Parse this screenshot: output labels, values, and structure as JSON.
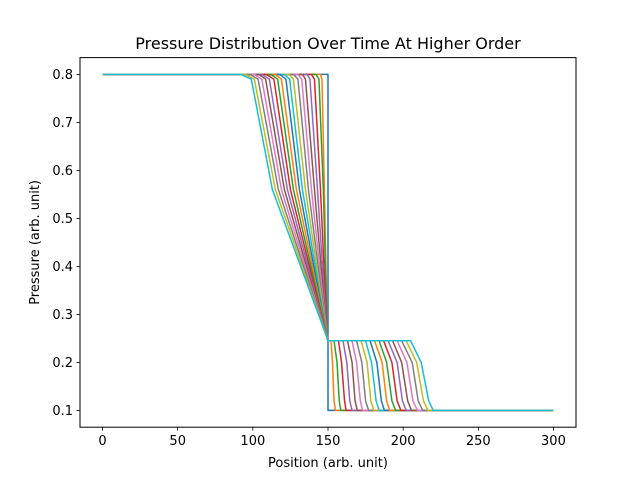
{
  "chart_data": {
    "type": "line",
    "title": "Pressure Distribution Over Time At Higher Order",
    "xlabel": "Position (arb. unit)",
    "ylabel": "Pressure (arb. unit)",
    "xlim": [
      -15,
      315
    ],
    "ylim": [
      0.065,
      0.835
    ],
    "xticks": [
      0,
      50,
      100,
      150,
      200,
      250,
      300
    ],
    "xtick_labels": [
      "0",
      "50",
      "100",
      "150",
      "200",
      "250",
      "300"
    ],
    "yticks": [
      0.1,
      0.2,
      0.3,
      0.4,
      0.5,
      0.6,
      0.7,
      0.8
    ],
    "ytick_labels": [
      "0.1",
      "0.2",
      "0.3",
      "0.4",
      "0.5",
      "0.6",
      "0.7",
      "0.8"
    ],
    "grid": false,
    "legend": "none",
    "colors": [
      "#1f77b4",
      "#ff7f0e",
      "#2ca02c",
      "#d62728",
      "#9467bd",
      "#8c564b",
      "#e377c2",
      "#7f7f7f",
      "#bcbd22",
      "#17becf"
    ],
    "series": [
      {
        "points": [
          [
            0,
            0.8
          ],
          [
            150,
            0.8
          ],
          [
            150,
            0.1
          ],
          [
            300,
            0.1
          ]
        ]
      },
      {
        "points": [
          [
            0,
            0.8
          ],
          [
            145,
            0.8
          ],
          [
            146,
            0.79
          ],
          [
            148,
            0.5
          ],
          [
            149.5,
            0.26
          ],
          [
            150,
            0.245
          ],
          [
            152,
            0.245
          ],
          [
            153,
            0.2
          ],
          [
            154,
            0.12
          ],
          [
            155,
            0.1
          ],
          [
            300,
            0.1
          ]
        ]
      },
      {
        "points": [
          [
            0,
            0.8
          ],
          [
            142,
            0.8
          ],
          [
            144,
            0.79
          ],
          [
            147,
            0.55
          ],
          [
            149.5,
            0.25
          ],
          [
            150,
            0.245
          ],
          [
            154,
            0.245
          ],
          [
            156,
            0.2
          ],
          [
            157.5,
            0.12
          ],
          [
            158.5,
            0.1
          ],
          [
            300,
            0.1
          ]
        ]
      },
      {
        "points": [
          [
            0,
            0.8
          ],
          [
            139,
            0.8
          ],
          [
            141,
            0.79
          ],
          [
            145,
            0.56
          ],
          [
            149.5,
            0.25
          ],
          [
            150,
            0.245
          ],
          [
            157,
            0.245
          ],
          [
            159,
            0.2
          ],
          [
            161,
            0.12
          ],
          [
            162,
            0.1
          ],
          [
            300,
            0.1
          ]
        ]
      },
      {
        "points": [
          [
            0,
            0.8
          ],
          [
            136,
            0.8
          ],
          [
            138,
            0.79
          ],
          [
            143,
            0.56
          ],
          [
            149.5,
            0.25
          ],
          [
            150,
            0.245
          ],
          [
            160,
            0.245
          ],
          [
            162.5,
            0.2
          ],
          [
            164.5,
            0.12
          ],
          [
            166,
            0.1
          ],
          [
            300,
            0.1
          ]
        ]
      },
      {
        "points": [
          [
            0,
            0.8
          ],
          [
            133,
            0.8
          ],
          [
            135,
            0.79
          ],
          [
            141,
            0.56
          ],
          [
            149.5,
            0.25
          ],
          [
            150,
            0.245
          ],
          [
            163,
            0.245
          ],
          [
            166,
            0.2
          ],
          [
            168,
            0.12
          ],
          [
            169.5,
            0.1
          ],
          [
            300,
            0.1
          ]
        ]
      },
      {
        "points": [
          [
            0,
            0.8
          ],
          [
            130,
            0.8
          ],
          [
            132.5,
            0.79
          ],
          [
            139,
            0.56
          ],
          [
            149.5,
            0.25
          ],
          [
            150,
            0.245
          ],
          [
            166,
            0.245
          ],
          [
            169,
            0.2
          ],
          [
            171.5,
            0.12
          ],
          [
            173,
            0.1
          ],
          [
            300,
            0.1
          ]
        ]
      },
      {
        "points": [
          [
            0,
            0.8
          ],
          [
            127,
            0.8
          ],
          [
            130,
            0.79
          ],
          [
            137,
            0.56
          ],
          [
            149.5,
            0.25
          ],
          [
            150,
            0.245
          ],
          [
            169,
            0.245
          ],
          [
            172.5,
            0.2
          ],
          [
            175,
            0.12
          ],
          [
            177,
            0.1
          ],
          [
            300,
            0.1
          ]
        ]
      },
      {
        "points": [
          [
            0,
            0.8
          ],
          [
            124,
            0.8
          ],
          [
            127,
            0.79
          ],
          [
            135,
            0.56
          ],
          [
            149.5,
            0.25
          ],
          [
            150,
            0.245
          ],
          [
            172,
            0.245
          ],
          [
            176,
            0.2
          ],
          [
            178.5,
            0.12
          ],
          [
            180.5,
            0.1
          ],
          [
            300,
            0.1
          ]
        ]
      },
      {
        "points": [
          [
            0,
            0.8
          ],
          [
            121,
            0.8
          ],
          [
            124.5,
            0.79
          ],
          [
            133,
            0.56
          ],
          [
            149.5,
            0.25
          ],
          [
            150,
            0.245
          ],
          [
            175,
            0.245
          ],
          [
            179,
            0.2
          ],
          [
            182,
            0.12
          ],
          [
            184,
            0.1
          ],
          [
            300,
            0.1
          ]
        ]
      },
      {
        "points": [
          [
            0,
            0.8
          ],
          [
            118,
            0.8
          ],
          [
            122,
            0.79
          ],
          [
            131,
            0.56
          ],
          [
            149.5,
            0.25
          ],
          [
            150,
            0.245
          ],
          [
            178,
            0.245
          ],
          [
            182.5,
            0.2
          ],
          [
            185.5,
            0.12
          ],
          [
            187.5,
            0.1
          ],
          [
            300,
            0.1
          ]
        ]
      },
      {
        "points": [
          [
            0,
            0.8
          ],
          [
            115,
            0.8
          ],
          [
            119,
            0.79
          ],
          [
            129,
            0.56
          ],
          [
            149.5,
            0.25
          ],
          [
            150,
            0.245
          ],
          [
            181,
            0.245
          ],
          [
            186,
            0.2
          ],
          [
            189,
            0.12
          ],
          [
            191,
            0.1
          ],
          [
            300,
            0.1
          ]
        ]
      },
      {
        "points": [
          [
            0,
            0.8
          ],
          [
            112,
            0.8
          ],
          [
            116.5,
            0.79
          ],
          [
            127,
            0.56
          ],
          [
            149.5,
            0.25
          ],
          [
            150,
            0.245
          ],
          [
            184,
            0.245
          ],
          [
            189,
            0.2
          ],
          [
            192.5,
            0.12
          ],
          [
            195,
            0.1
          ],
          [
            300,
            0.1
          ]
        ]
      },
      {
        "points": [
          [
            0,
            0.8
          ],
          [
            109,
            0.8
          ],
          [
            114,
            0.79
          ],
          [
            125,
            0.56
          ],
          [
            149.5,
            0.25
          ],
          [
            150,
            0.245
          ],
          [
            187,
            0.245
          ],
          [
            192.5,
            0.2
          ],
          [
            196,
            0.12
          ],
          [
            198.5,
            0.1
          ],
          [
            300,
            0.1
          ]
        ]
      },
      {
        "points": [
          [
            0,
            0.8
          ],
          [
            106,
            0.8
          ],
          [
            111,
            0.79
          ],
          [
            123,
            0.56
          ],
          [
            149.5,
            0.25
          ],
          [
            150,
            0.245
          ],
          [
            190,
            0.245
          ],
          [
            196,
            0.2
          ],
          [
            199.5,
            0.12
          ],
          [
            202,
            0.1
          ],
          [
            300,
            0.1
          ]
        ]
      },
      {
        "points": [
          [
            0,
            0.8
          ],
          [
            104,
            0.8
          ],
          [
            108.5,
            0.79
          ],
          [
            121,
            0.56
          ],
          [
            149.5,
            0.25
          ],
          [
            150,
            0.245
          ],
          [
            193,
            0.245
          ],
          [
            199,
            0.2
          ],
          [
            203,
            0.12
          ],
          [
            205.5,
            0.1
          ],
          [
            300,
            0.1
          ]
        ]
      },
      {
        "points": [
          [
            0,
            0.8
          ],
          [
            101,
            0.8
          ],
          [
            106,
            0.79
          ],
          [
            119,
            0.56
          ],
          [
            149.5,
            0.25
          ],
          [
            150,
            0.245
          ],
          [
            196,
            0.245
          ],
          [
            202.5,
            0.2
          ],
          [
            206.5,
            0.12
          ],
          [
            209.5,
            0.1
          ],
          [
            300,
            0.1
          ]
        ]
      },
      {
        "points": [
          [
            0,
            0.8
          ],
          [
            98,
            0.8
          ],
          [
            103.5,
            0.79
          ],
          [
            117,
            0.56
          ],
          [
            149.5,
            0.25
          ],
          [
            150,
            0.245
          ],
          [
            199,
            0.245
          ],
          [
            206,
            0.2
          ],
          [
            210,
            0.12
          ],
          [
            213,
            0.1
          ],
          [
            300,
            0.1
          ]
        ]
      },
      {
        "points": [
          [
            0,
            0.8
          ],
          [
            95,
            0.8
          ],
          [
            101,
            0.79
          ],
          [
            115,
            0.56
          ],
          [
            149.5,
            0.25
          ],
          [
            150,
            0.245
          ],
          [
            202,
            0.245
          ],
          [
            209,
            0.2
          ],
          [
            213.5,
            0.12
          ],
          [
            216.5,
            0.1
          ],
          [
            300,
            0.1
          ]
        ]
      },
      {
        "points": [
          [
            0,
            0.8
          ],
          [
            92,
            0.8
          ],
          [
            99,
            0.79
          ],
          [
            113,
            0.56
          ],
          [
            149.5,
            0.25
          ],
          [
            150,
            0.245
          ],
          [
            205,
            0.245
          ],
          [
            212,
            0.2
          ],
          [
            217,
            0.12
          ],
          [
            220,
            0.1
          ],
          [
            300,
            0.1
          ]
        ]
      }
    ]
  }
}
